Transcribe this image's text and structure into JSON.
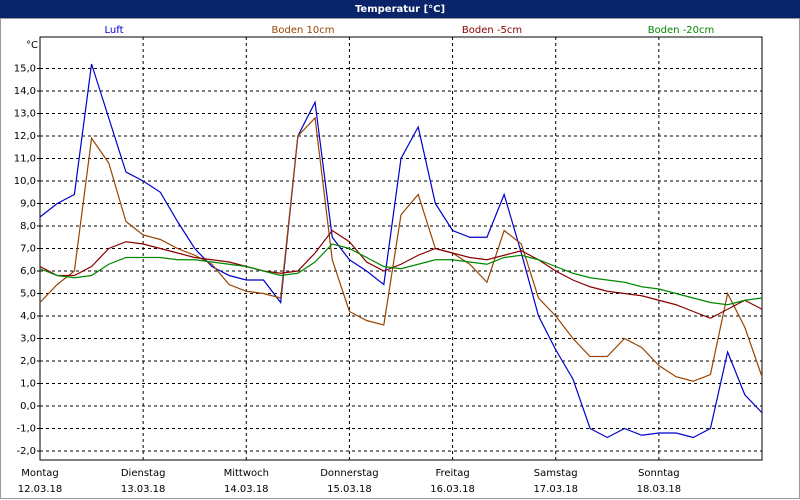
{
  "chart_data": {
    "type": "line",
    "title": "Temperatur [°C]",
    "y_unit": "°C",
    "x": [
      0,
      4,
      8,
      12,
      16,
      20,
      24,
      28,
      32,
      36,
      40,
      44,
      48,
      52,
      56,
      60,
      64,
      68,
      72,
      76,
      80,
      84,
      88,
      92,
      96,
      100,
      104,
      108,
      112,
      116,
      120,
      124,
      128,
      132,
      136,
      140,
      144,
      148,
      152,
      156,
      160,
      164,
      168
    ],
    "xlim": [
      0,
      168
    ],
    "xticks": [
      {
        "value": 0,
        "label": "Montag"
      },
      {
        "value": 24,
        "label": "Dienstag"
      },
      {
        "value": 48,
        "label": "Mittwoch"
      },
      {
        "value": 72,
        "label": "Donnerstag"
      },
      {
        "value": 96,
        "label": "Freitag"
      },
      {
        "value": 120,
        "label": "Samstag"
      },
      {
        "value": 144,
        "label": "Sonntag"
      }
    ],
    "xtick_dates": [
      "12.03.18",
      "13.03.18",
      "14.03.18",
      "15.03.18",
      "16.03.18",
      "17.03.18",
      "18.03.18"
    ],
    "ylim": [
      -2.4,
      16.4
    ],
    "yticks": [
      {
        "value": -2,
        "label": "-2,0"
      },
      {
        "value": -1,
        "label": "-1,0"
      },
      {
        "value": 0,
        "label": "0,0"
      },
      {
        "value": 1,
        "label": "1,0"
      },
      {
        "value": 2,
        "label": "2,0"
      },
      {
        "value": 3,
        "label": "3,0"
      },
      {
        "value": 4,
        "label": "4,0"
      },
      {
        "value": 5,
        "label": "5,0"
      },
      {
        "value": 6,
        "label": "6,0"
      },
      {
        "value": 7,
        "label": "7,0"
      },
      {
        "value": 8,
        "label": "8,0"
      },
      {
        "value": 9,
        "label": "9,0"
      },
      {
        "value": 10,
        "label": "10,0"
      },
      {
        "value": 11,
        "label": "11,0"
      },
      {
        "value": 12,
        "label": "12,0"
      },
      {
        "value": 13,
        "label": "13,0"
      },
      {
        "value": 14,
        "label": "14,0"
      },
      {
        "value": 15,
        "label": "15,0"
      }
    ],
    "grid": true,
    "series": [
      {
        "name": "Luft",
        "color": "#0000cc",
        "values": [
          8.4,
          9.0,
          9.4,
          15.2,
          12.8,
          10.4,
          10.0,
          9.5,
          8.2,
          7.0,
          6.2,
          5.8,
          5.6,
          5.6,
          4.6,
          12.0,
          13.5,
          7.5,
          6.5,
          6.0,
          5.4,
          11.0,
          12.4,
          9.0,
          7.8,
          7.5,
          7.5,
          9.4,
          6.8,
          4.0,
          2.5,
          1.2,
          -1.0,
          -1.4,
          -1.0,
          -1.3,
          -1.2,
          -1.2,
          -1.4,
          -1.0,
          2.4,
          0.5,
          -0.3
        ]
      },
      {
        "name": "Boden 10cm",
        "color": "#994400",
        "values": [
          4.6,
          5.4,
          6.0,
          11.9,
          10.8,
          8.2,
          7.6,
          7.4,
          7.0,
          6.7,
          6.3,
          5.4,
          5.1,
          5.0,
          4.8,
          12.0,
          12.8,
          6.5,
          4.2,
          3.8,
          3.6,
          8.5,
          9.4,
          7.0,
          6.8,
          6.3,
          5.5,
          7.8,
          7.2,
          4.8,
          4.0,
          3.0,
          2.2,
          2.2,
          3.0,
          2.6,
          1.8,
          1.3,
          1.1,
          1.4,
          5.0,
          3.5,
          1.3
        ]
      },
      {
        "name": "Boden -5cm",
        "color": "#880000",
        "values": [
          6.2,
          5.8,
          5.8,
          6.2,
          7.0,
          7.3,
          7.2,
          7.0,
          6.8,
          6.6,
          6.5,
          6.4,
          6.2,
          6.0,
          5.9,
          6.0,
          6.8,
          7.8,
          7.3,
          6.4,
          6.0,
          6.3,
          6.7,
          7.0,
          6.8,
          6.6,
          6.5,
          6.7,
          6.9,
          6.5,
          6.0,
          5.6,
          5.3,
          5.1,
          5.0,
          4.9,
          4.7,
          4.5,
          4.2,
          3.9,
          4.3,
          4.7,
          4.3
        ]
      },
      {
        "name": "Boden -20cm",
        "color": "#008800",
        "values": [
          6.1,
          5.8,
          5.7,
          5.8,
          6.3,
          6.6,
          6.6,
          6.6,
          6.5,
          6.5,
          6.4,
          6.3,
          6.2,
          6.0,
          5.8,
          5.9,
          6.4,
          7.2,
          7.0,
          6.6,
          6.2,
          6.1,
          6.3,
          6.5,
          6.5,
          6.4,
          6.3,
          6.6,
          6.7,
          6.5,
          6.2,
          5.9,
          5.7,
          5.6,
          5.5,
          5.3,
          5.2,
          5.0,
          4.8,
          4.6,
          4.5,
          4.7,
          4.8
        ]
      }
    ]
  }
}
